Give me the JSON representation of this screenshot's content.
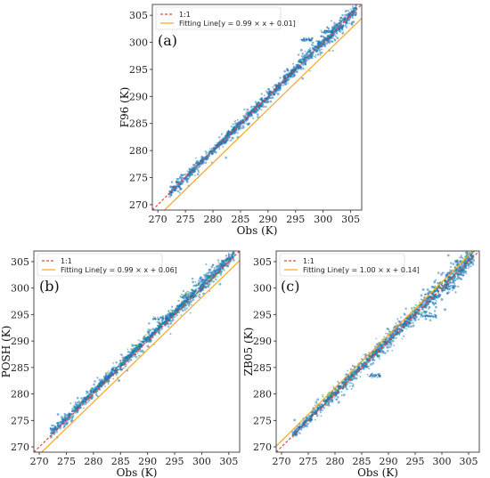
{
  "colors": {
    "scatter": "#1f77b4",
    "scatter_dense": "#2a6fa8",
    "one_to_one": "#e8433c",
    "fit": "#f5a623",
    "secondary_points": "#4caf50"
  },
  "chart_data": [
    {
      "type": "scatter",
      "panel_label": "(a)",
      "xlabel": "Obs (K)",
      "ylabel": "F96 (K)",
      "xlim": [
        269,
        307
      ],
      "ylim": [
        269,
        307
      ],
      "xticks": [
        270,
        275,
        280,
        285,
        290,
        295,
        300,
        305
      ],
      "yticks": [
        270,
        275,
        280,
        285,
        290,
        295,
        300,
        305
      ],
      "grid": false,
      "legend_position": "top-left",
      "series": [
        {
          "name": "1:1",
          "slope": 1.0,
          "intercept": 0.0
        },
        {
          "name": "Fitting Line[y = 0.99 × x + 0.01]",
          "slope": 0.99,
          "intercept": 0.01
        }
      ]
    },
    {
      "type": "scatter",
      "panel_label": "(b)",
      "xlabel": "Obs (K)",
      "ylabel": "POSH (K)",
      "xlim": [
        269,
        307
      ],
      "ylim": [
        269,
        307
      ],
      "xticks": [
        270,
        275,
        280,
        285,
        290,
        295,
        300,
        305
      ],
      "yticks": [
        270,
        275,
        280,
        285,
        290,
        295,
        300,
        305
      ],
      "grid": false,
      "legend_position": "top-left",
      "series": [
        {
          "name": "1:1",
          "slope": 1.0,
          "intercept": 0.0
        },
        {
          "name": "Fitting Line[y = 0.99 × x + 0.06]",
          "slope": 0.99,
          "intercept": 0.06
        }
      ]
    },
    {
      "type": "scatter",
      "panel_label": "(c)",
      "xlabel": "Obs (K)",
      "ylabel": "ZB05 (K)",
      "xlim": [
        269,
        307
      ],
      "ylim": [
        269,
        307
      ],
      "xticks": [
        270,
        275,
        280,
        285,
        290,
        295,
        300,
        305
      ],
      "yticks": [
        270,
        275,
        280,
        285,
        290,
        295,
        300,
        305
      ],
      "grid": false,
      "legend_position": "top-left",
      "series": [
        {
          "name": "1:1",
          "slope": 1.0,
          "intercept": 0.0
        },
        {
          "name": "Fitting Line[y = 1.00 × x + 0.14]",
          "slope": 1.0,
          "intercept": 0.14
        }
      ]
    }
  ]
}
